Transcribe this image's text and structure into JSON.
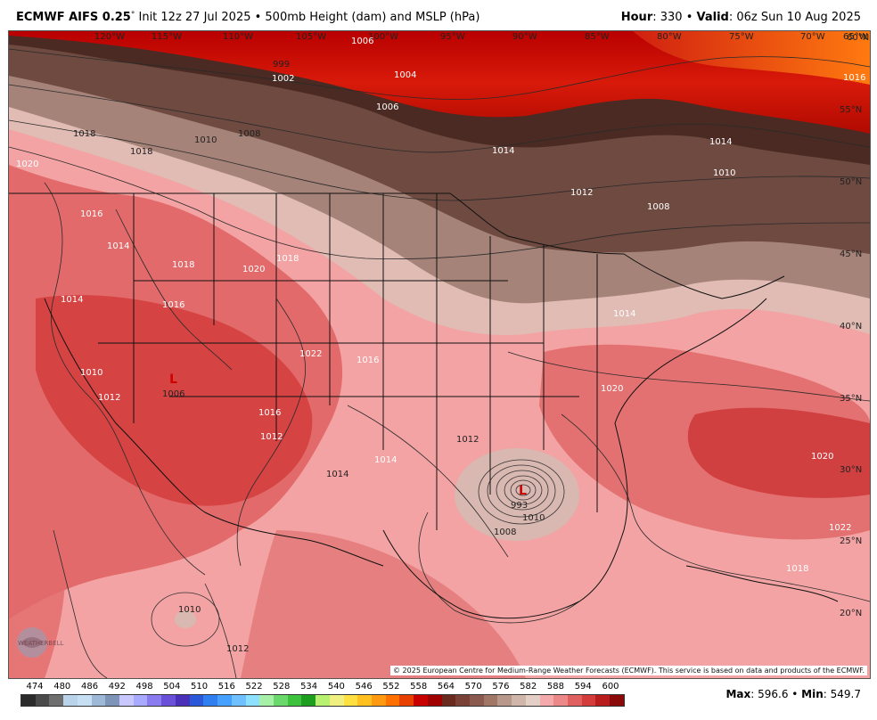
{
  "header": {
    "model": "ECMWF AIFS 0.25",
    "degree": "°",
    "init": " Init 12z 27 Jul 2025 • 500mb Height (dam) and MSLP (hPa)",
    "hour_label": "Hour",
    "hour_value": ": 330 • ",
    "valid_label": "Valid",
    "valid_value": ": 06z Sun 10 Aug 2025"
  },
  "map": {
    "lon_ticks": [
      "120°W",
      "115°W",
      "110°W",
      "105°W",
      "100°W",
      "95°W",
      "90°W",
      "85°W",
      "80°W",
      "75°W",
      "70°W",
      "65°W"
    ],
    "lat_ticks": [
      "55°N",
      "50°N",
      "45°N",
      "40°N",
      "35°N",
      "30°N",
      "25°N",
      "20°N"
    ],
    "lat_top": "60°N",
    "isobar_labels": [
      "999",
      "1002",
      "1004",
      "1006",
      "1006",
      "1008",
      "1010",
      "1010",
      "1012",
      "1014",
      "1014",
      "1016",
      "1016",
      "1018",
      "1018",
      "1020",
      "1020",
      "1022",
      "1014",
      "1008",
      "1010",
      "1012",
      "1014",
      "1016",
      "1018",
      "1020",
      "1022",
      "1016",
      "1010",
      "1012",
      "1006",
      "993",
      "1008",
      "1014",
      "1018",
      "1016",
      "1014",
      "1020",
      "1018",
      "1012",
      "1014",
      "1010",
      "1012"
    ],
    "low_marker": "L",
    "attribution": "© 2025 European Centre for Medium-Range Weather Forecasts (ECMWF). This service is based on data and products of the ECMWF.",
    "logo_text": "WEATHERBELL"
  },
  "colorbar": {
    "labels": [
      "474",
      "480",
      "486",
      "492",
      "498",
      "504",
      "510",
      "516",
      "522",
      "528",
      "534",
      "540",
      "546",
      "552",
      "558",
      "564",
      "570",
      "576",
      "582",
      "588",
      "594",
      "600"
    ],
    "colors": [
      "#2b2b2b",
      "#4a4a4a",
      "#6e6e6e",
      "#b9d3ea",
      "#c6dff3",
      "#9eb8d8",
      "#7f95b8",
      "#c8c8ff",
      "#a9a9ff",
      "#8a7bf0",
      "#6a50d8",
      "#4a2fb8",
      "#2a58d8",
      "#2f7ff0",
      "#45a0ff",
      "#6fc0ff",
      "#8ee0ff",
      "#a6f0a8",
      "#6ad86a",
      "#3cc23c",
      "#1e9e1e",
      "#b8f070",
      "#f0f080",
      "#ffe040",
      "#ffc020",
      "#ff9a10",
      "#ff7000",
      "#e84000",
      "#c80000",
      "#a00000",
      "#6b2a1e",
      "#7a4236",
      "#8a5a4e",
      "#a07666",
      "#b8988a",
      "#d0b6aa",
      "#e4cfc6",
      "#f4aaaa",
      "#ec8888",
      "#e06060",
      "#d43c3c",
      "#b81c1c",
      "#8a0a0a"
    ],
    "max_label": "Max",
    "max_value": "596.6",
    "min_label": "Min",
    "min_value": "549.7",
    "sep": " • "
  }
}
